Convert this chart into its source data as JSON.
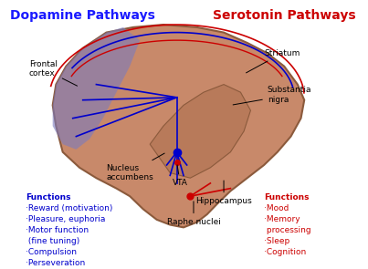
{
  "title_left": "Dopamine Pathways",
  "title_right": "Serotonin Pathways",
  "title_left_color": "#1a1aff",
  "title_right_color": "#cc0000",
  "bg_color": "#ffffff",
  "brain_fill": "#c8896a",
  "brain_edge": "#8b5a3c",
  "frontal_fill": "#7b7bbf",
  "frontal_alpha": 0.6,
  "dopamine_line_color": "#0000cc",
  "serotonin_line_color": "#cc0000",
  "label_color": "#000000",
  "functions_left_header": "Functions",
  "functions_left_color": "#0000cc",
  "functions_left": [
    "·Reward (motivation)",
    "·Pleasure, euphoria",
    "·Motor function",
    " (fine tuning)",
    "·Compulsion",
    "·Perseveration"
  ],
  "functions_right_header": "Functions",
  "functions_right_color": "#cc0000",
  "functions_right": [
    "·Mood",
    "·Memory",
    " processing",
    "·Sleep",
    "·Cognition"
  ]
}
